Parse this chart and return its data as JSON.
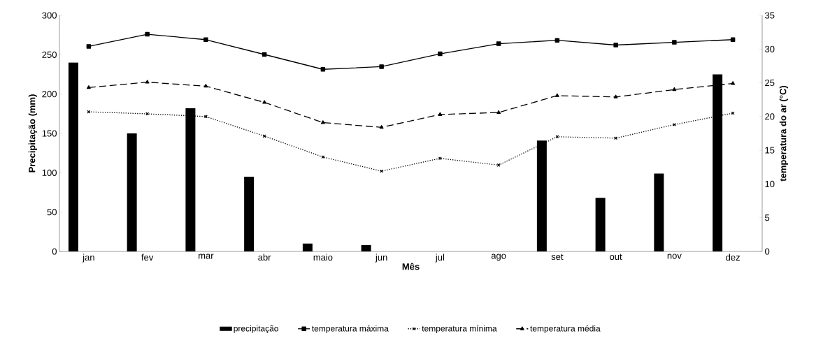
{
  "chart_data": {
    "type": "bar",
    "xlabel": "Mês",
    "ylabel": "Precipitação (mm)",
    "y2label": "temperatura do ar (°C)",
    "categories": [
      "jan",
      "fev",
      "mar",
      "abr",
      "maio",
      "jun",
      "jul",
      "ago",
      "set",
      "out",
      "nov",
      "dez"
    ],
    "series": [
      {
        "name": "precipitação",
        "color": "#000000",
        "values": [
          240,
          150,
          182,
          95,
          10,
          8,
          0,
          0,
          141,
          68,
          99,
          225
        ]
      },
      {
        "name": "temperatura máxima",
        "type": "line",
        "axis": "y2",
        "color": "#000000",
        "marker": "square",
        "line_style": "solid",
        "values": [
          30.4,
          32.2,
          31.4,
          29.2,
          27.0,
          27.4,
          29.3,
          30.8,
          31.3,
          30.6,
          31.0,
          31.4
        ]
      },
      {
        "name": "temperatura mínima",
        "type": "line",
        "axis": "y2",
        "color": "#000000",
        "marker": "cross",
        "line_style": "dotted",
        "values": [
          20.7,
          20.4,
          20.0,
          17.1,
          14.0,
          11.9,
          13.8,
          12.8,
          17.0,
          16.8,
          18.8,
          20.5
        ]
      },
      {
        "name": "temperatura média",
        "type": "line",
        "axis": "y2",
        "color": "#000000",
        "marker": "triangle",
        "line_style": "dashed",
        "values": [
          24.3,
          25.1,
          24.5,
          22.1,
          19.1,
          18.4,
          20.3,
          20.6,
          23.1,
          22.9,
          24.0,
          24.9
        ]
      }
    ],
    "ylim": [
      0,
      300
    ],
    "yticks": [
      0,
      50,
      100,
      150,
      200,
      250,
      300
    ],
    "y2lim": [
      0,
      35
    ],
    "y2ticks": [
      0,
      5,
      10,
      15,
      20,
      25,
      30,
      35
    ],
    "grid": false,
    "legend": "bottom"
  }
}
